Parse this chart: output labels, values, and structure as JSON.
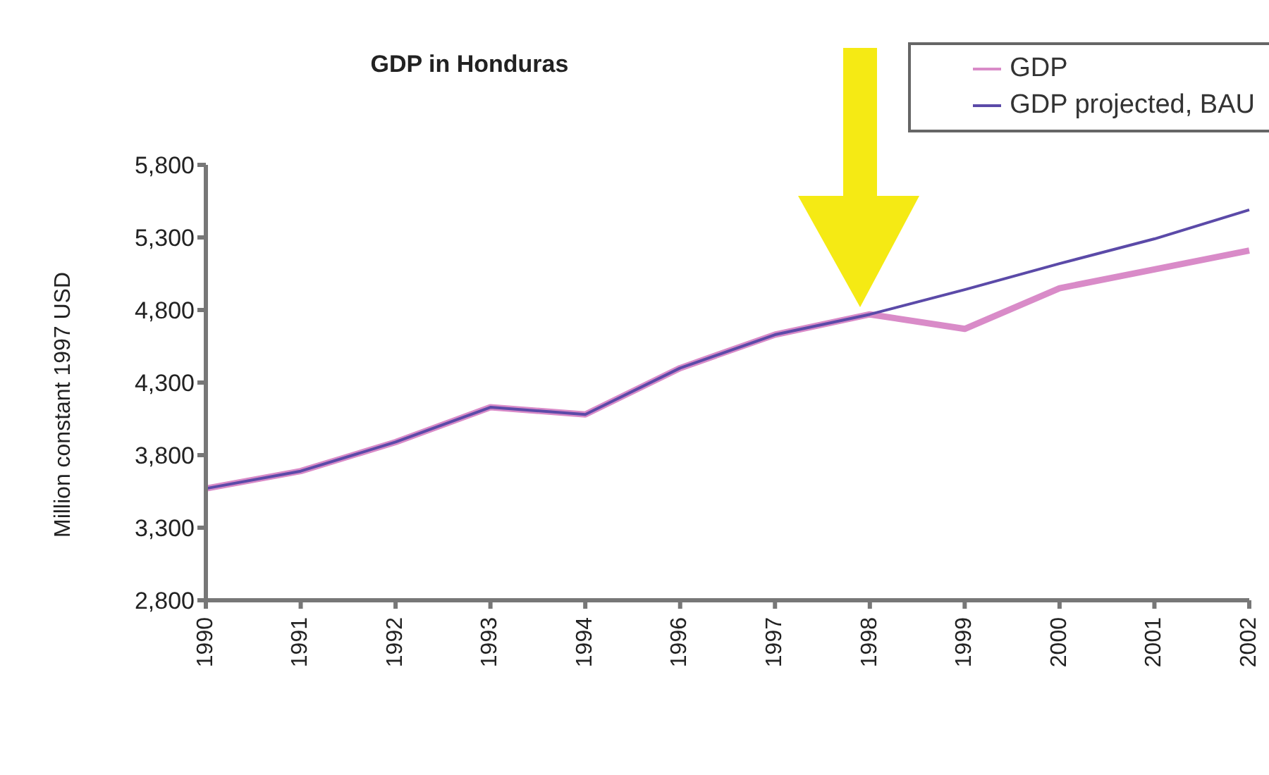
{
  "chart_data": {
    "type": "line",
    "title": "GDP in Honduras",
    "ylabel": "Million constant 1997 USD",
    "categories": [
      "1990",
      "1991",
      "1992",
      "1993",
      "1994",
      "1996",
      "1997",
      "1998",
      "1999",
      "2000",
      "2001",
      "2002"
    ],
    "series": [
      {
        "name": "GDP",
        "color": "#d98bc8",
        "values": [
          3570,
          3690,
          3890,
          4130,
          4080,
          4400,
          4630,
          4770,
          4670,
          4950,
          5080,
          5210
        ]
      },
      {
        "name": "GDP projected, BAU",
        "color": "#5b4aa8",
        "values": [
          3570,
          3690,
          3890,
          4130,
          4080,
          4400,
          4630,
          4770,
          4940,
          5120,
          5290,
          5490
        ]
      }
    ],
    "ylim": [
      2800,
      5800
    ],
    "yticks": [
      {
        "value": 2800,
        "label": "2,800"
      },
      {
        "value": 3300,
        "label": "3,300"
      },
      {
        "value": 3800,
        "label": "3,800"
      },
      {
        "value": 4300,
        "label": "4,300"
      },
      {
        "value": 4800,
        "label": "4,800"
      },
      {
        "value": 5300,
        "label": "5,300"
      },
      {
        "value": 5800,
        "label": "5,800"
      }
    ],
    "grid": false,
    "legend": "top right",
    "marker": "none",
    "line_style": "solid"
  }
}
